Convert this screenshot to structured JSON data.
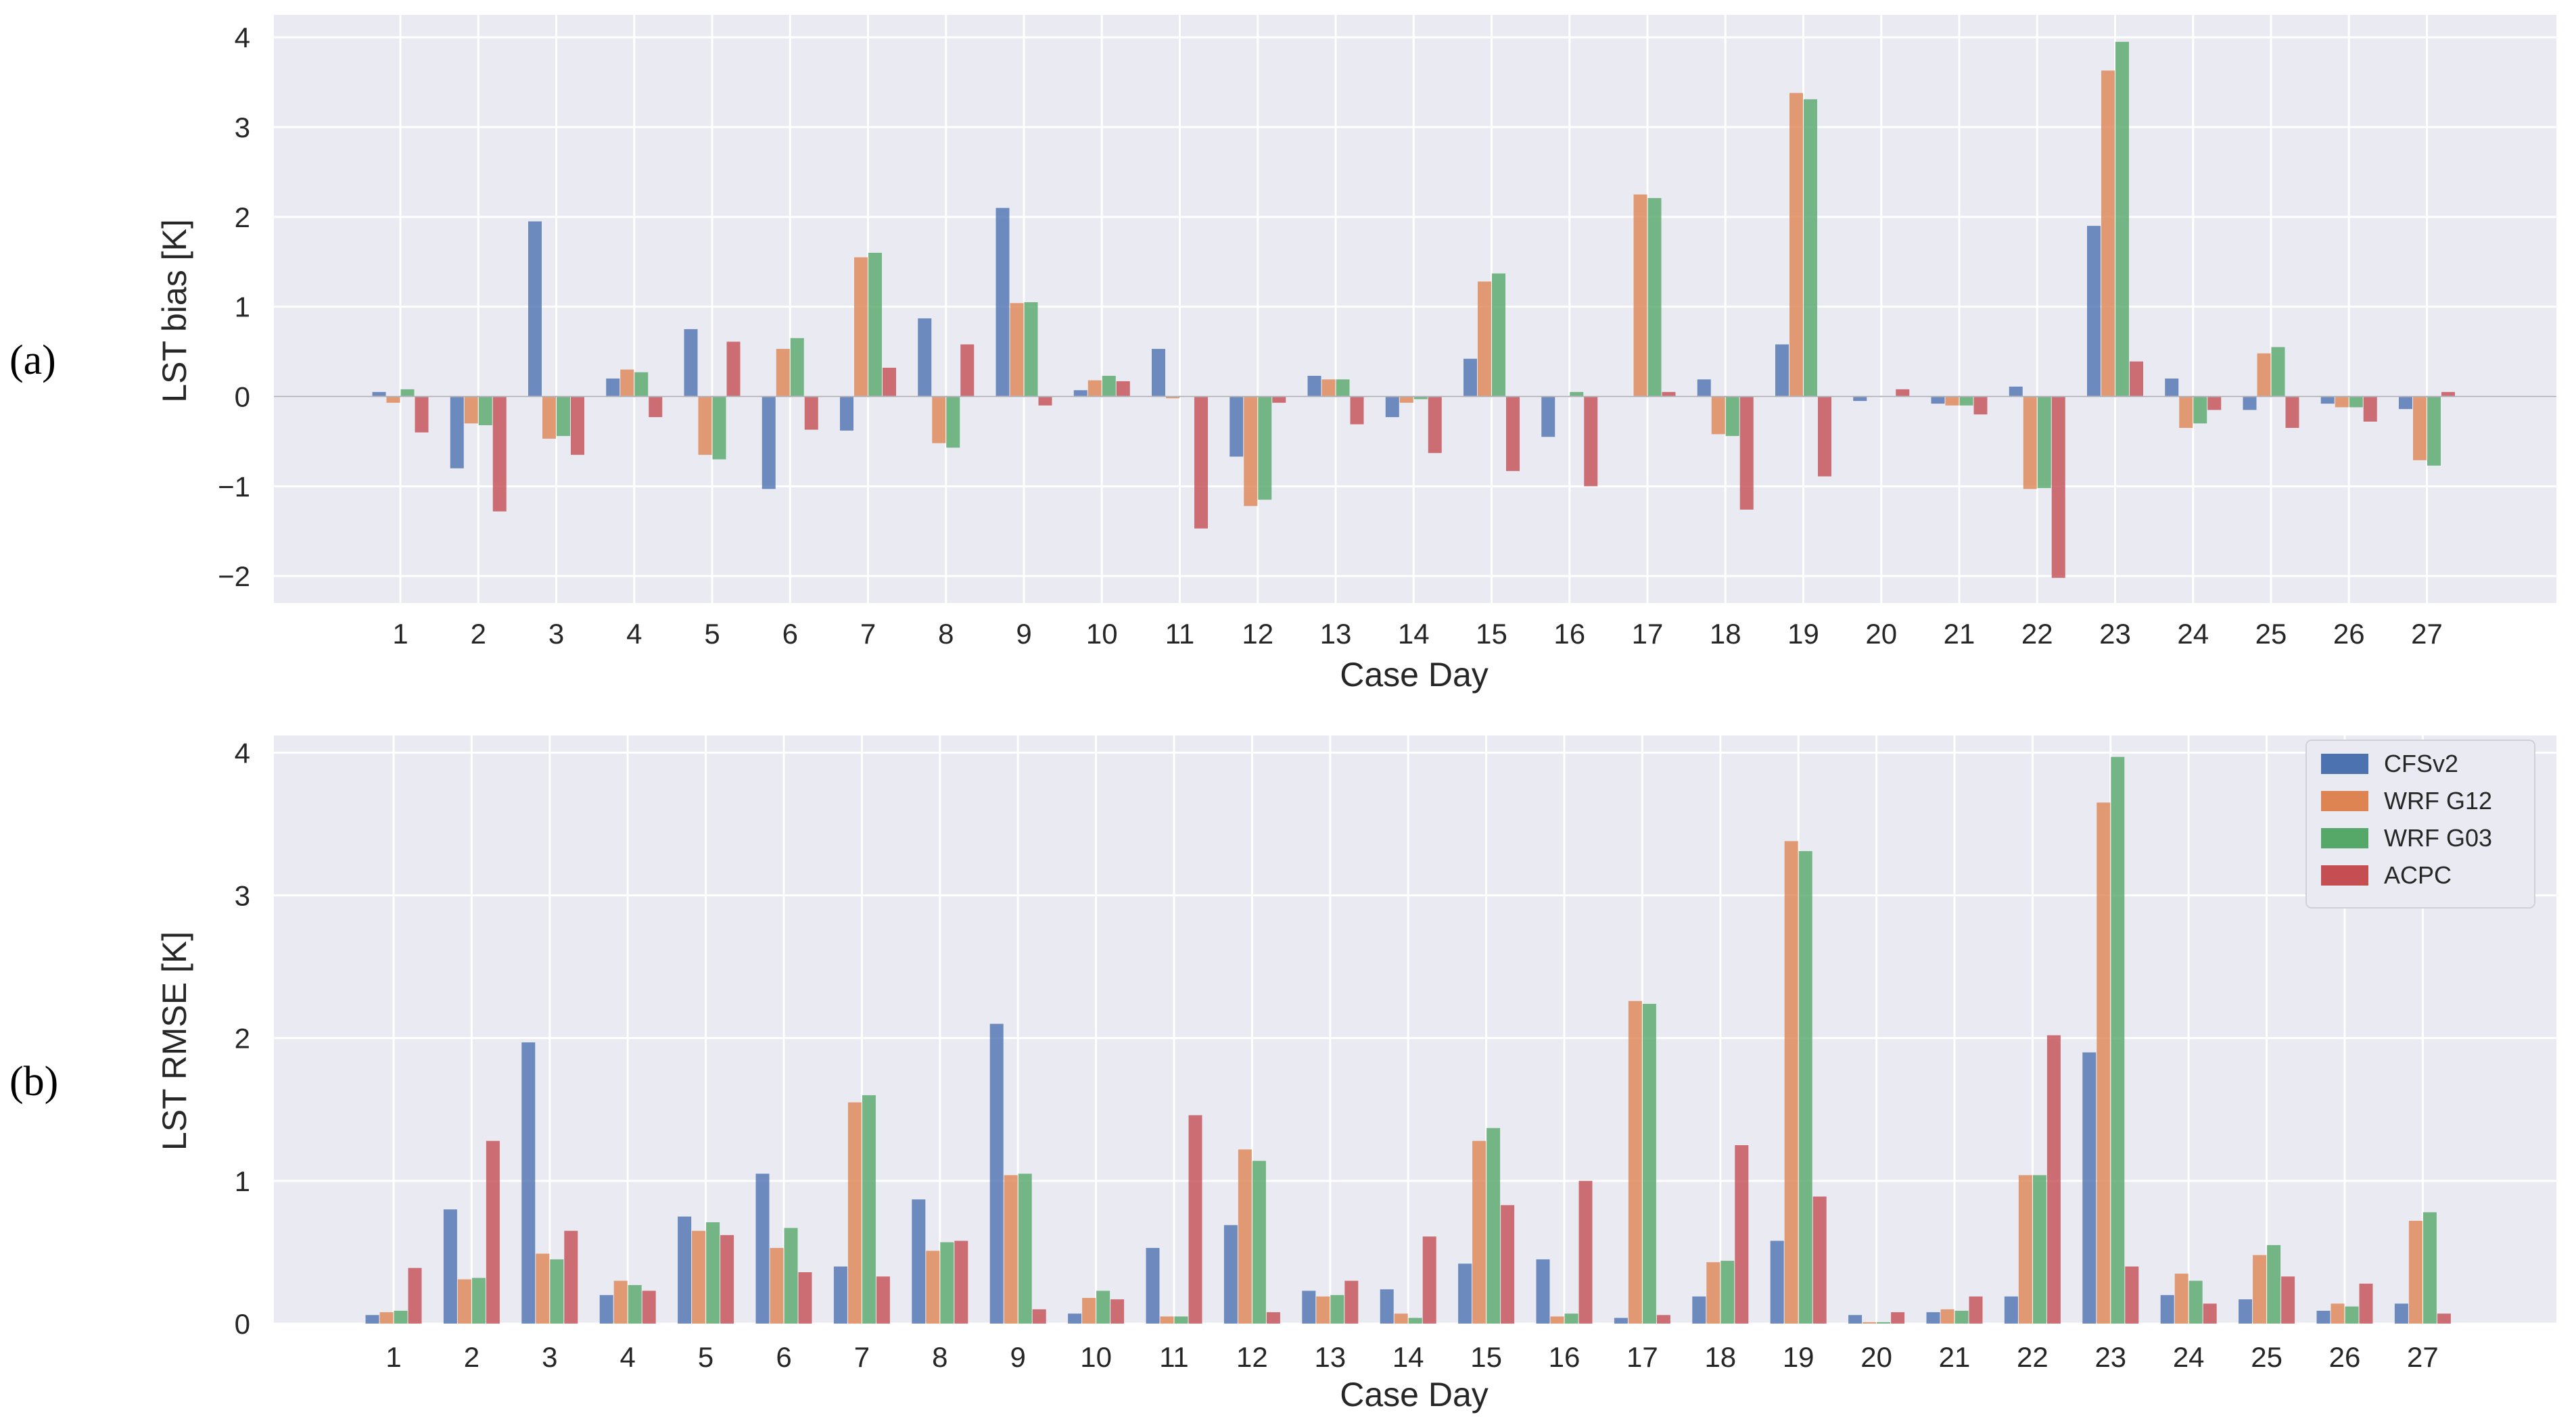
{
  "figure": {
    "colors": {
      "plot_bg": "#eaeaf2",
      "grid": "#ffffff",
      "zero_line": "#b0b0b8"
    }
  },
  "chart_data": [
    {
      "panel_label": "(a)",
      "type": "bar",
      "xlabel": "Case Day",
      "ylabel": "LST bias [K]",
      "ylim": [
        -2.3,
        4.25
      ],
      "yticks": [
        -2,
        -1,
        0,
        1,
        2,
        3,
        4
      ],
      "ytick_labels": [
        "−2",
        "−1",
        "0",
        "1",
        "2",
        "3",
        "4"
      ],
      "categories": [
        "1",
        "2",
        "3",
        "4",
        "5",
        "6",
        "7",
        "8",
        "9",
        "10",
        "11",
        "12",
        "13",
        "14",
        "15",
        "16",
        "17",
        "18",
        "19",
        "20",
        "21",
        "22",
        "23",
        "24",
        "25",
        "26",
        "27"
      ],
      "grid": true,
      "series": [
        {
          "name": "CFSv2",
          "color": "#4c72b0",
          "values": [
            0.05,
            -0.8,
            1.95,
            0.2,
            0.75,
            -1.03,
            -0.38,
            0.87,
            2.1,
            0.07,
            0.53,
            -0.67,
            0.23,
            -0.23,
            0.42,
            -0.45,
            0.0,
            0.19,
            0.58,
            -0.05,
            -0.08,
            0.11,
            1.9,
            0.2,
            -0.15,
            -0.08,
            -0.14
          ]
        },
        {
          "name": "WRF G12",
          "color": "#dd8452",
          "values": [
            -0.07,
            -0.3,
            -0.47,
            0.3,
            -0.65,
            0.53,
            1.55,
            -0.52,
            1.04,
            0.18,
            -0.02,
            -1.22,
            0.19,
            -0.07,
            1.28,
            0.0,
            2.25,
            -0.42,
            3.38,
            0.0,
            -0.1,
            -1.03,
            3.63,
            -0.35,
            0.48,
            -0.12,
            -0.71
          ]
        },
        {
          "name": "WRF G03",
          "color": "#55a868",
          "values": [
            0.08,
            -0.32,
            -0.44,
            0.27,
            -0.7,
            0.65,
            1.6,
            -0.57,
            1.05,
            0.23,
            0.0,
            -1.15,
            0.19,
            -0.03,
            1.37,
            0.05,
            2.21,
            -0.44,
            3.31,
            0.0,
            -0.1,
            -1.02,
            3.95,
            -0.3,
            0.55,
            -0.12,
            -0.77
          ]
        },
        {
          "name": "ACPC",
          "color": "#c44e52",
          "values": [
            -0.4,
            -1.28,
            -0.65,
            -0.23,
            0.61,
            -0.37,
            0.32,
            0.58,
            -0.1,
            0.17,
            -1.47,
            -0.07,
            -0.31,
            -0.63,
            -0.83,
            -1.0,
            0.05,
            -1.26,
            -0.89,
            0.08,
            -0.2,
            -2.02,
            0.39,
            -0.15,
            -0.35,
            -0.28,
            0.05
          ]
        }
      ]
    },
    {
      "panel_label": "(b)",
      "type": "bar",
      "xlabel": "Case Day",
      "ylabel": "LST RMSE [K]",
      "ylim": [
        0,
        4.12
      ],
      "yticks": [
        0,
        1,
        2,
        3,
        4
      ],
      "ytick_labels": [
        "0",
        "1",
        "2",
        "3",
        "4"
      ],
      "categories": [
        "1",
        "2",
        "3",
        "4",
        "5",
        "6",
        "7",
        "8",
        "9",
        "10",
        "11",
        "12",
        "13",
        "14",
        "15",
        "16",
        "17",
        "18",
        "19",
        "20",
        "21",
        "22",
        "23",
        "24",
        "25",
        "26",
        "27"
      ],
      "grid": true,
      "legend": {
        "placement": "top-right",
        "entries": [
          "CFSv2",
          "WRF G12",
          "WRF G03",
          "ACPC"
        ]
      },
      "series": [
        {
          "name": "CFSv2",
          "color": "#4c72b0",
          "values": [
            0.06,
            0.8,
            1.97,
            0.2,
            0.75,
            1.05,
            0.4,
            0.87,
            2.1,
            0.07,
            0.53,
            0.69,
            0.23,
            0.24,
            0.42,
            0.45,
            0.04,
            0.19,
            0.58,
            0.06,
            0.08,
            0.19,
            1.9,
            0.2,
            0.17,
            0.09,
            0.14
          ]
        },
        {
          "name": "WRF G12",
          "color": "#dd8452",
          "values": [
            0.08,
            0.31,
            0.49,
            0.3,
            0.65,
            0.53,
            1.55,
            0.51,
            1.04,
            0.18,
            0.05,
            1.22,
            0.19,
            0.07,
            1.28,
            0.05,
            2.26,
            0.43,
            3.38,
            0.01,
            0.1,
            1.04,
            3.65,
            0.35,
            0.48,
            0.14,
            0.72
          ]
        },
        {
          "name": "WRF G03",
          "color": "#55a868",
          "values": [
            0.09,
            0.32,
            0.45,
            0.27,
            0.71,
            0.67,
            1.6,
            0.57,
            1.05,
            0.23,
            0.05,
            1.14,
            0.2,
            0.04,
            1.37,
            0.07,
            2.24,
            0.44,
            3.31,
            0.01,
            0.09,
            1.04,
            3.97,
            0.3,
            0.55,
            0.12,
            0.78
          ]
        },
        {
          "name": "ACPC",
          "color": "#c44e52",
          "values": [
            0.39,
            1.28,
            0.65,
            0.23,
            0.62,
            0.36,
            0.33,
            0.58,
            0.1,
            0.17,
            1.46,
            0.08,
            0.3,
            0.61,
            0.83,
            1.0,
            0.06,
            1.25,
            0.89,
            0.08,
            0.19,
            2.02,
            0.4,
            0.14,
            0.33,
            0.28,
            0.07
          ]
        }
      ]
    }
  ]
}
